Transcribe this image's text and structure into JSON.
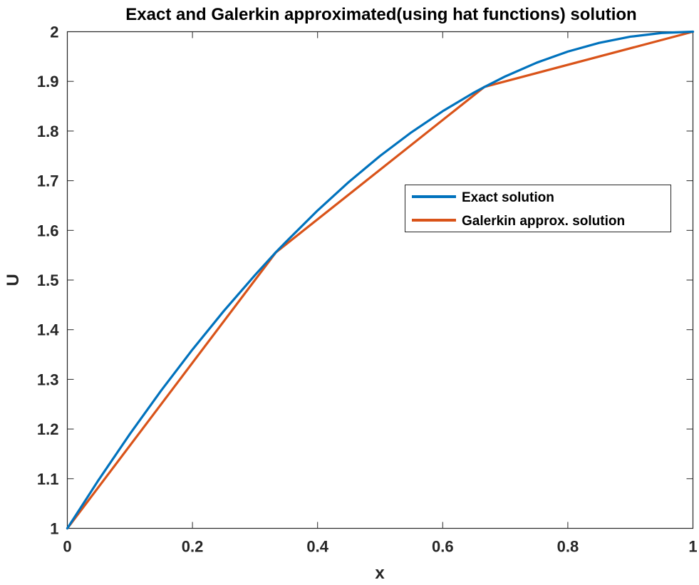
{
  "chart_data": {
    "type": "line",
    "title": "Exact and Galerkin approximated(using hat functions) solution",
    "xlabel": "x",
    "ylabel": "U",
    "xlim": [
      0,
      1
    ],
    "ylim": [
      1,
      2
    ],
    "xticks": [
      "0",
      "0.2",
      "0.4",
      "0.6",
      "0.8",
      "1"
    ],
    "yticks": [
      "1",
      "1.1",
      "1.2",
      "1.3",
      "1.4",
      "1.5",
      "1.6",
      "1.7",
      "1.8",
      "1.9",
      "2"
    ],
    "grid": false,
    "legend_position": "upper-right-center",
    "series": [
      {
        "name": "Exact solution",
        "color": "#0072BD",
        "x": [
          0,
          0.05,
          0.1,
          0.15,
          0.2,
          0.25,
          0.3,
          0.333,
          0.35,
          0.4,
          0.45,
          0.5,
          0.55,
          0.6,
          0.65,
          0.667,
          0.7,
          0.75,
          0.8,
          0.85,
          0.9,
          0.95,
          1
        ],
        "y": [
          1,
          1.0975,
          1.19,
          1.2775,
          1.36,
          1.4375,
          1.51,
          1.5556,
          1.5775,
          1.64,
          1.6975,
          1.75,
          1.7975,
          1.84,
          1.8775,
          1.8889,
          1.91,
          1.9375,
          1.96,
          1.9775,
          1.99,
          1.9975,
          2
        ]
      },
      {
        "name": "Galerkin approx. solution",
        "color": "#D95319",
        "x": [
          0,
          0.3333,
          0.6667,
          1
        ],
        "y": [
          1,
          1.5556,
          1.8889,
          2
        ]
      }
    ]
  }
}
